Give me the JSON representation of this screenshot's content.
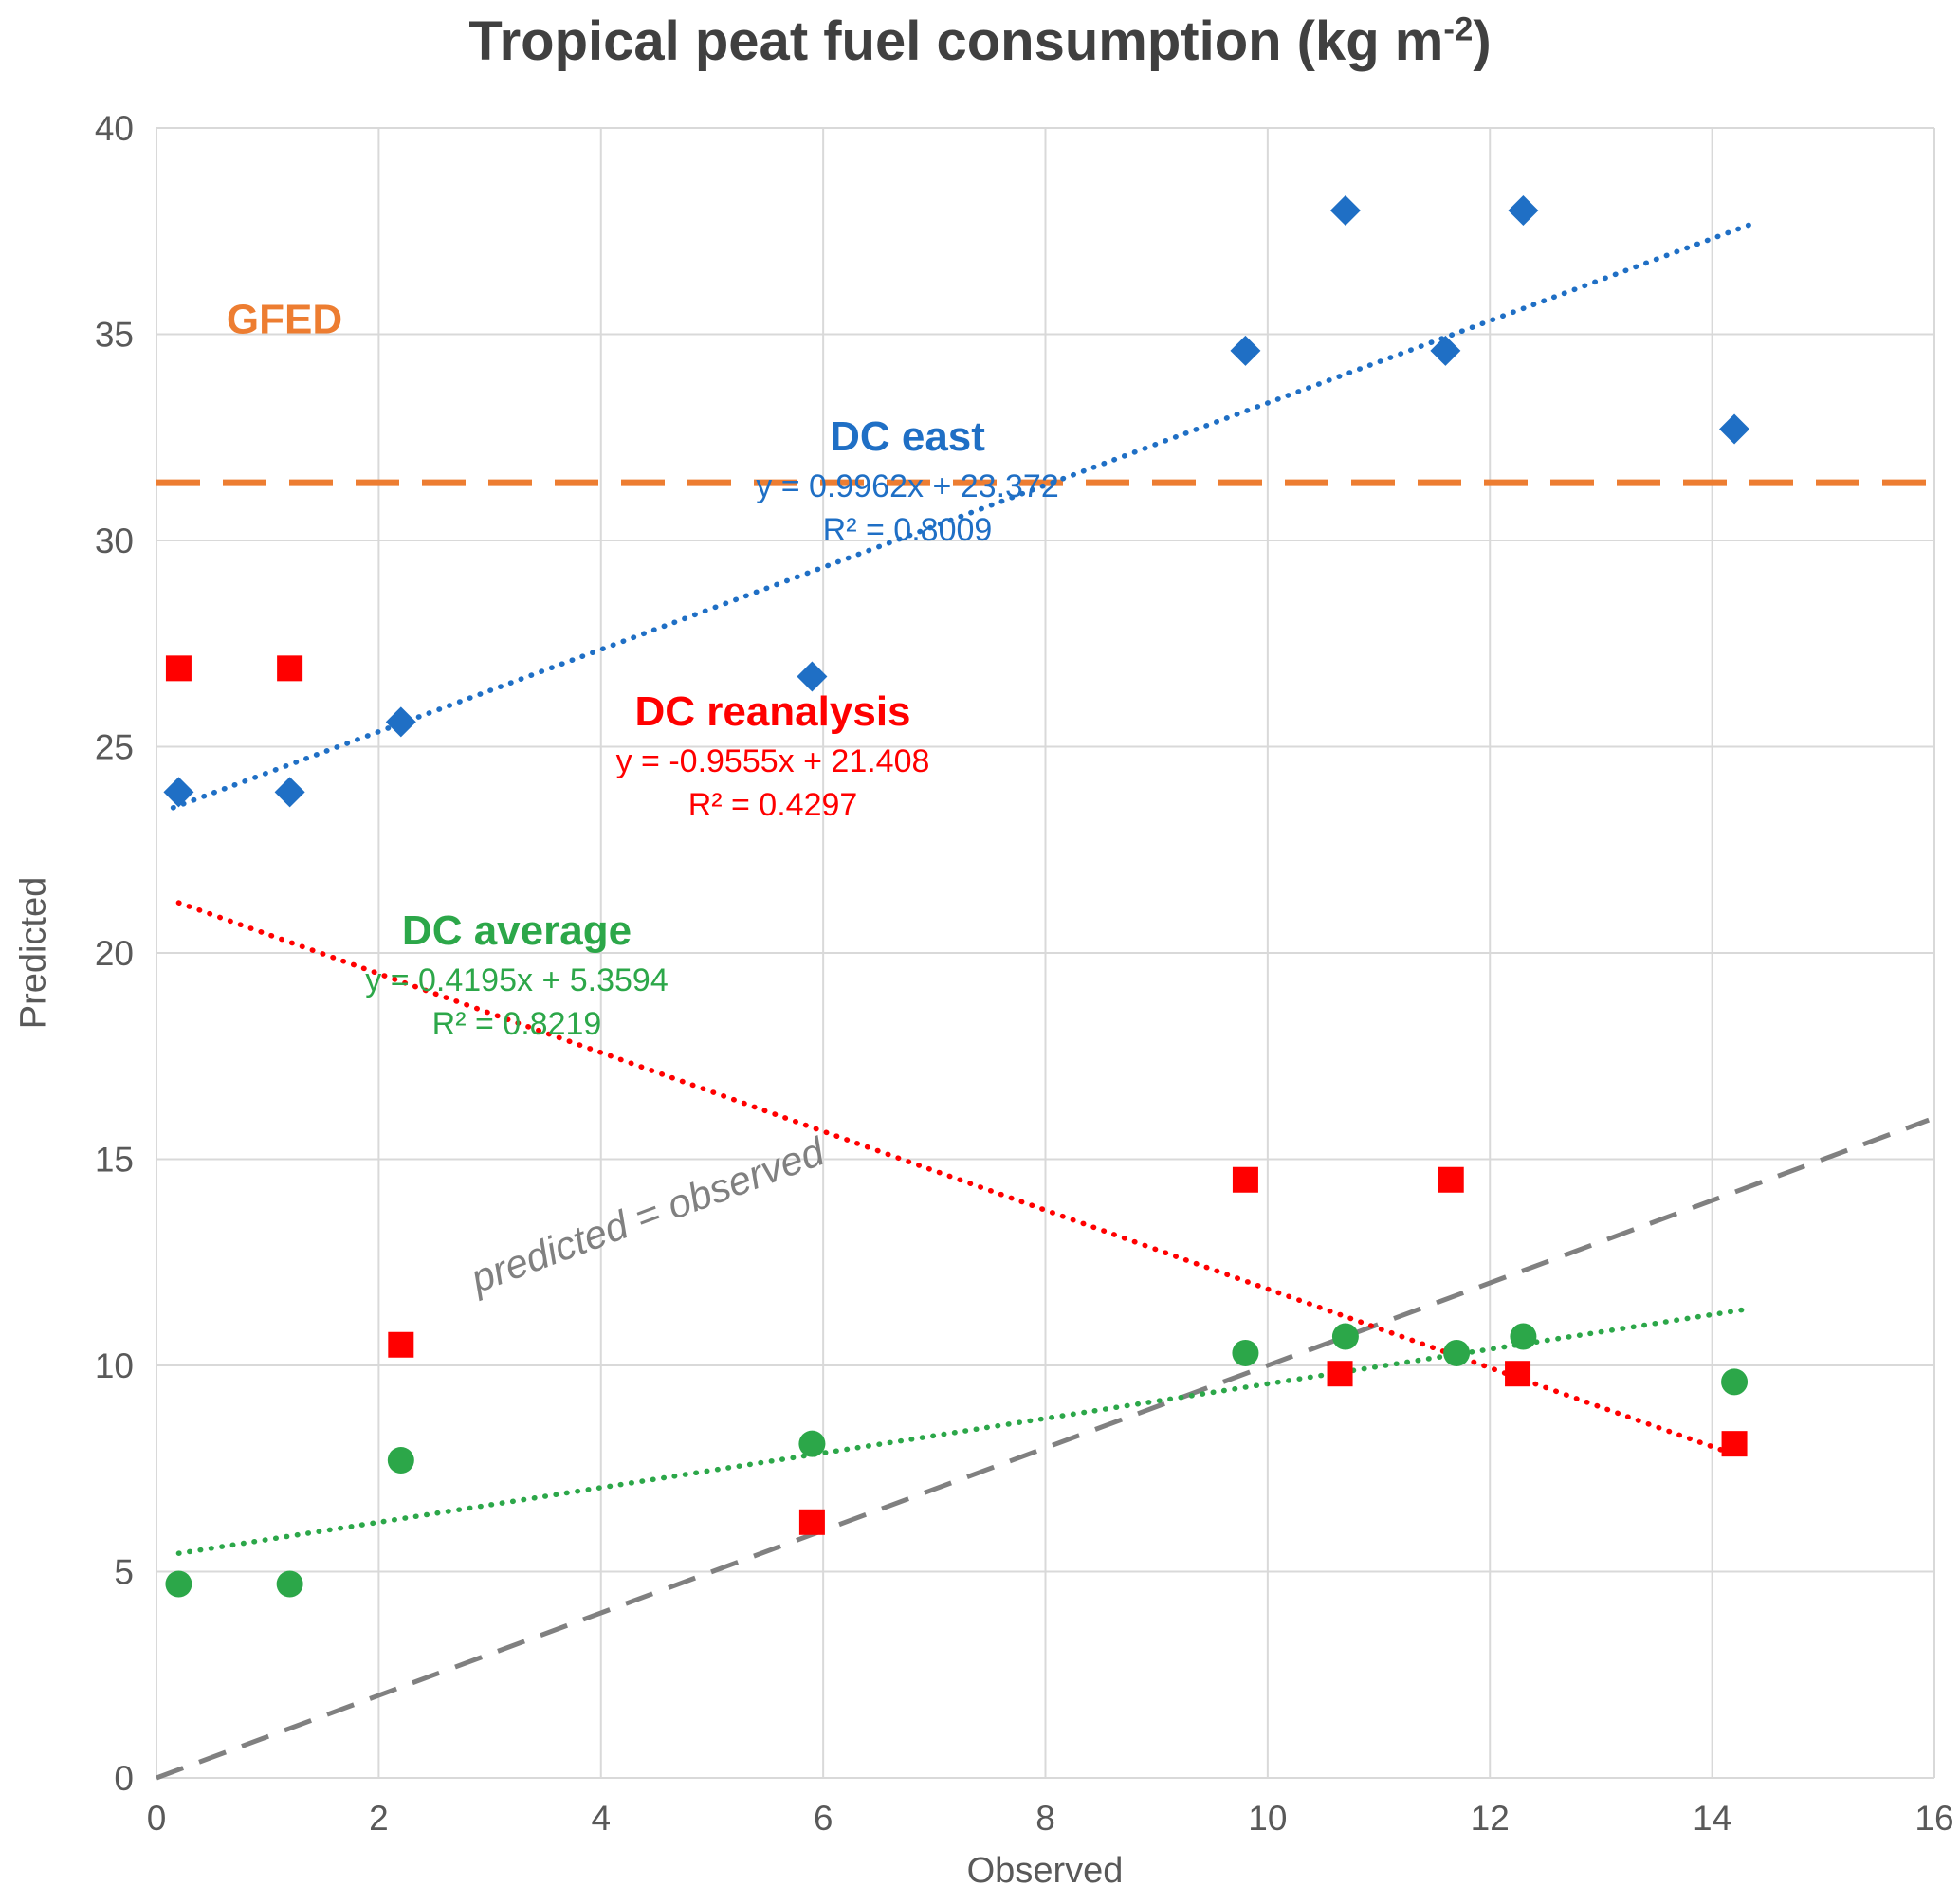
{
  "title": {
    "prefix": "Tropical peat fuel consumption (kg m",
    "sup": "-2",
    "suffix": ")"
  },
  "chart_data": {
    "type": "scatter",
    "title": "Tropical peat fuel consumption (kg m⁻²)",
    "xlabel": "Observed",
    "ylabel": "Predicted",
    "xlim": [
      0,
      16
    ],
    "ylim": [
      0,
      40
    ],
    "xticks": [
      0,
      2,
      4,
      6,
      8,
      10,
      12,
      14,
      16
    ],
    "yticks": [
      0,
      5,
      10,
      15,
      20,
      25,
      30,
      35,
      40
    ],
    "grid": true,
    "grid_color": "#D9D9D9",
    "tick_color": "#595959",
    "title_color": "#404040",
    "legend_position": "none",
    "series": [
      {
        "name": "DC east",
        "marker": "diamond",
        "color": "#1F6FC5",
        "points": [
          [
            0.2,
            23.9
          ],
          [
            1.2,
            23.9
          ],
          [
            2.2,
            25.6
          ],
          [
            5.9,
            26.7
          ],
          [
            9.8,
            34.6
          ],
          [
            10.7,
            38
          ],
          [
            11.6,
            34.6
          ],
          [
            12.3,
            38
          ],
          [
            14.2,
            32.7
          ]
        ],
        "trendline": {
          "equation": "y = 0.9962x + 23.372",
          "r2_label": "R² = 0.8009",
          "slope": 0.9962,
          "intercept": 23.372,
          "r2": 0.8009,
          "x_range": [
            0.15,
            14.35
          ],
          "style": "dotted"
        }
      },
      {
        "name": "DC reanalysis",
        "marker": "square",
        "color": "#FF0000",
        "points": [
          [
            0.2,
            26.9
          ],
          [
            1.2,
            26.9
          ],
          [
            2.2,
            10.5
          ],
          [
            5.9,
            6.2
          ],
          [
            9.8,
            14.5
          ],
          [
            10.65,
            9.8
          ],
          [
            11.65,
            14.5
          ],
          [
            12.25,
            9.8
          ],
          [
            14.2,
            8.1
          ]
        ],
        "trendline": {
          "equation": "y = -0.9555x + 21.408",
          "r2_label": "R² = 0.4297",
          "slope": -0.9555,
          "intercept": 21.408,
          "r2": 0.4297,
          "x_range": [
            0.2,
            14.2
          ],
          "style": "dotted"
        }
      },
      {
        "name": "DC average",
        "marker": "circle",
        "color": "#2CA749",
        "points": [
          [
            0.2,
            4.7
          ],
          [
            1.2,
            4.7
          ],
          [
            2.2,
            7.7
          ],
          [
            5.9,
            8.1
          ],
          [
            9.8,
            10.3
          ],
          [
            10.7,
            10.7
          ],
          [
            11.7,
            10.3
          ],
          [
            12.3,
            10.7
          ],
          [
            14.2,
            9.6
          ]
        ],
        "trendline": {
          "equation": "y = 0.4195x + 5.3594",
          "r2_label": "R² = 0.8219",
          "slope": 0.4195,
          "intercept": 5.3594,
          "r2": 0.8219,
          "x_range": [
            0.2,
            14.3
          ],
          "style": "dotted"
        }
      }
    ],
    "reference_lines": [
      {
        "name": "GFED",
        "type": "horizontal",
        "y": 31.4,
        "color": "#ED7D31",
        "style": "dashed"
      },
      {
        "name": "predicted = observed",
        "type": "identity",
        "from": [
          0,
          0
        ],
        "to": [
          15.95,
          15.95
        ],
        "color": "#808080",
        "style": "dashed"
      }
    ]
  }
}
